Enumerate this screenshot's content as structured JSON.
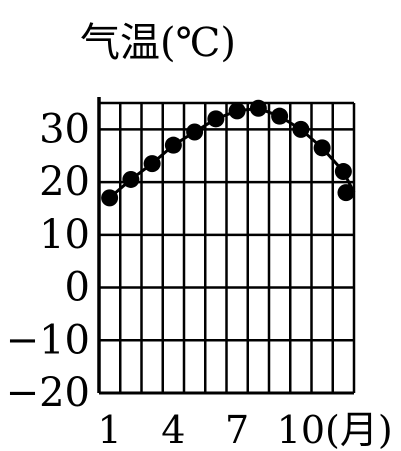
{
  "chart_data": {
    "type": "line",
    "title": "",
    "ylabel": "气温(℃)",
    "xlabel": "",
    "x_unit": "(月)",
    "x": [
      1,
      2,
      3,
      4,
      5,
      6,
      7,
      8,
      9,
      10,
      11,
      12
    ],
    "x_tick_labels": [
      {
        "x": 1,
        "text": "1"
      },
      {
        "x": 4,
        "text": "4"
      },
      {
        "x": 7,
        "text": "7"
      },
      {
        "x": 10,
        "text": "10"
      }
    ],
    "y_ticks": [
      30,
      20,
      10,
      0,
      -10,
      -20
    ],
    "y_tick_labels": [
      "30",
      "20",
      "10",
      "0",
      "−10",
      "−20"
    ],
    "xlim": [
      0.5,
      12.5
    ],
    "ylim": [
      -20,
      35
    ],
    "grid": true,
    "marker": "circle",
    "color": "#000000",
    "series": [
      {
        "values": [
          17,
          20.5,
          23.5,
          27,
          29.5,
          32,
          33.5,
          34,
          32.5,
          30,
          26.5,
          22
        ]
      }
    ],
    "end_values": [
      {
        "x": 12.5,
        "y": 18
      }
    ]
  }
}
